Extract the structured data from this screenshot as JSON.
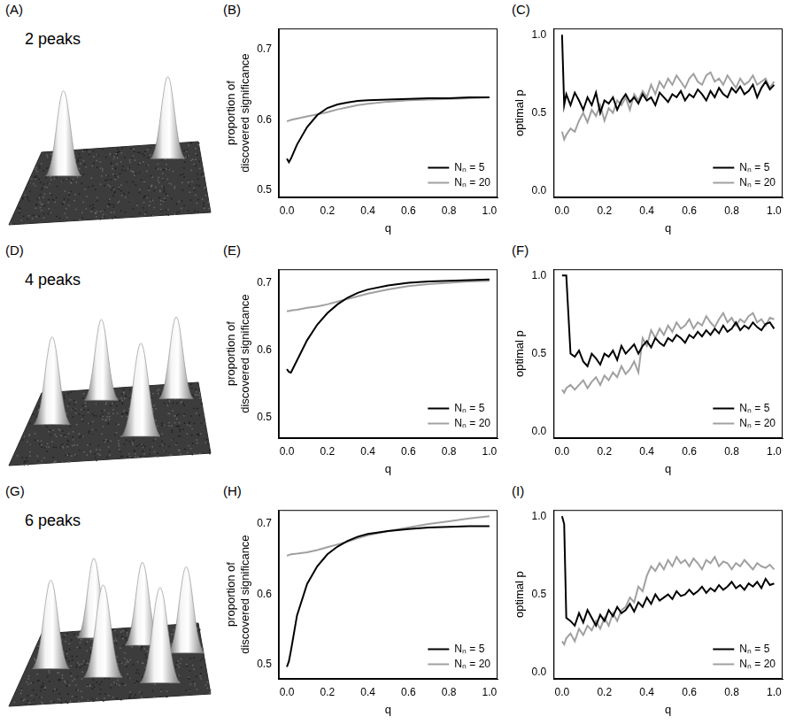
{
  "illustrations": [
    {
      "panel_label": "(A)",
      "label": "2 peaks",
      "peaks": 2
    },
    {
      "panel_label": "(D)",
      "label": "4 peaks",
      "peaks": 4
    },
    {
      "panel_label": "(G)",
      "label": "6 peaks",
      "peaks": 6
    }
  ],
  "chart_data": [
    {
      "type": "line",
      "panel_label": "(B)",
      "x_label": "q",
      "y_label": "proportion of discovered significance",
      "x": [
        0,
        0.01,
        0.02,
        0.05,
        0.1,
        0.15,
        0.2,
        0.25,
        0.3,
        0.35,
        0.4,
        0.5,
        0.6,
        0.7,
        0.8,
        0.9,
        1
      ],
      "series": [
        {
          "name": "Nₙ = 5",
          "color": "#000000",
          "values": [
            0.545,
            0.54,
            0.545,
            0.565,
            0.59,
            0.607,
            0.617,
            0.622,
            0.625,
            0.627,
            0.628,
            0.629,
            0.63,
            0.631,
            0.631,
            0.632,
            0.632
          ]
        },
        {
          "name": "Nₙ = 20",
          "color": "#a0a0a0",
          "values": [
            0.598,
            0.599,
            0.6,
            0.602,
            0.605,
            0.608,
            0.611,
            0.615,
            0.618,
            0.621,
            0.623,
            0.626,
            0.628,
            0.629,
            0.63,
            0.631,
            0.632
          ]
        }
      ],
      "xlim": [
        -0.04,
        1.04
      ],
      "xticks": [
        {
          "value": 0,
          "label": "0.0"
        },
        0.2,
        0.4,
        0.6,
        0.8,
        {
          "value": 1,
          "label": "1.0"
        }
      ],
      "ylim": [
        0.49,
        0.73
      ],
      "yticks": [
        0.5,
        0.6,
        0.7
      ],
      "grid": false,
      "legend": "bottom right"
    },
    {
      "type": "line",
      "panel_label": "(C)",
      "x_label": "q",
      "y_label": "optimal p",
      "x": [
        0,
        0.01,
        0.02,
        0.04,
        0.06,
        0.08,
        0.1,
        0.12,
        0.14,
        0.16,
        0.18,
        0.2,
        0.22,
        0.24,
        0.26,
        0.28,
        0.3,
        0.32,
        0.34,
        0.36,
        0.38,
        0.4,
        0.42,
        0.44,
        0.46,
        0.48,
        0.5,
        0.52,
        0.54,
        0.56,
        0.58,
        0.6,
        0.62,
        0.64,
        0.66,
        0.68,
        0.7,
        0.72,
        0.74,
        0.76,
        0.78,
        0.8,
        0.82,
        0.84,
        0.86,
        0.88,
        0.9,
        0.92,
        0.94,
        0.96,
        0.98,
        1
      ],
      "series": [
        {
          "name": "Nₙ = 5",
          "color": "#000000",
          "values": [
            1.0,
            0.55,
            0.62,
            0.55,
            0.63,
            0.58,
            0.52,
            0.6,
            0.55,
            0.63,
            0.5,
            0.58,
            0.56,
            0.6,
            0.52,
            0.58,
            0.62,
            0.57,
            0.6,
            0.56,
            0.62,
            0.58,
            0.6,
            0.55,
            0.63,
            0.6,
            0.57,
            0.62,
            0.6,
            0.64,
            0.58,
            0.62,
            0.6,
            0.65,
            0.62,
            0.58,
            0.64,
            0.6,
            0.66,
            0.62,
            0.6,
            0.66,
            0.63,
            0.67,
            0.62,
            0.64,
            0.68,
            0.6,
            0.66,
            0.7,
            0.65,
            0.68
          ]
        },
        {
          "name": "Nₙ = 20",
          "color": "#a0a0a0",
          "values": [
            0.38,
            0.33,
            0.36,
            0.4,
            0.38,
            0.45,
            0.5,
            0.44,
            0.52,
            0.48,
            0.55,
            0.45,
            0.53,
            0.5,
            0.58,
            0.55,
            0.6,
            0.52,
            0.62,
            0.58,
            0.64,
            0.6,
            0.68,
            0.62,
            0.7,
            0.66,
            0.72,
            0.68,
            0.74,
            0.7,
            0.66,
            0.72,
            0.75,
            0.7,
            0.68,
            0.74,
            0.76,
            0.7,
            0.72,
            0.68,
            0.74,
            0.7,
            0.66,
            0.72,
            0.68,
            0.7,
            0.74,
            0.68,
            0.7,
            0.72,
            0.66,
            0.7
          ]
        }
      ],
      "xlim": [
        -0.04,
        1.04
      ],
      "xticks": [
        {
          "value": 0,
          "label": "0.0"
        },
        0.2,
        0.4,
        0.6,
        0.8,
        {
          "value": 1,
          "label": "1.0"
        }
      ],
      "ylim": [
        -0.04,
        1.04
      ],
      "yticks": [
        {
          "value": 0,
          "label": "0.0"
        },
        0.5,
        {
          "value": 1,
          "label": "1.0"
        }
      ],
      "grid": false,
      "legend": "bottom right"
    },
    {
      "type": "line",
      "panel_label": "(E)",
      "x_label": "q",
      "y_label": "proportion of discovered significance",
      "x": [
        0,
        0.01,
        0.02,
        0.05,
        0.1,
        0.15,
        0.2,
        0.25,
        0.3,
        0.35,
        0.4,
        0.5,
        0.6,
        0.7,
        0.8,
        0.9,
        1
      ],
      "series": [
        {
          "name": "Nₙ = 5",
          "color": "#000000",
          "values": [
            0.572,
            0.568,
            0.567,
            0.585,
            0.615,
            0.638,
            0.655,
            0.668,
            0.678,
            0.685,
            0.69,
            0.696,
            0.7,
            0.702,
            0.703,
            0.704,
            0.705
          ]
        },
        {
          "name": "Nₙ = 20",
          "color": "#a0a0a0",
          "values": [
            0.658,
            0.658,
            0.659,
            0.66,
            0.663,
            0.665,
            0.668,
            0.672,
            0.676,
            0.68,
            0.684,
            0.69,
            0.695,
            0.698,
            0.7,
            0.702,
            0.703
          ]
        }
      ],
      "xlim": [
        -0.04,
        1.04
      ],
      "xticks": [
        {
          "value": 0,
          "label": "0.0"
        },
        0.2,
        0.4,
        0.6,
        0.8,
        {
          "value": 1,
          "label": "1.0"
        }
      ],
      "ylim": [
        0.47,
        0.72
      ],
      "yticks": [
        0.5,
        0.6,
        0.7
      ],
      "grid": false,
      "legend": "bottom right"
    },
    {
      "type": "line",
      "panel_label": "(F)",
      "x_label": "q",
      "y_label": "optimal p",
      "x": [
        0,
        0.01,
        0.02,
        0.04,
        0.06,
        0.08,
        0.1,
        0.12,
        0.14,
        0.16,
        0.18,
        0.2,
        0.22,
        0.24,
        0.26,
        0.28,
        0.3,
        0.32,
        0.34,
        0.36,
        0.38,
        0.4,
        0.42,
        0.44,
        0.46,
        0.48,
        0.5,
        0.52,
        0.54,
        0.56,
        0.58,
        0.6,
        0.62,
        0.64,
        0.66,
        0.68,
        0.7,
        0.72,
        0.74,
        0.76,
        0.78,
        0.8,
        0.82,
        0.84,
        0.86,
        0.88,
        0.9,
        0.92,
        0.94,
        0.96,
        0.98,
        1
      ],
      "series": [
        {
          "name": "Nₙ = 5",
          "color": "#000000",
          "values": [
            1.0,
            1.0,
            1.0,
            0.5,
            0.48,
            0.52,
            0.45,
            0.42,
            0.5,
            0.47,
            0.43,
            0.5,
            0.48,
            0.52,
            0.46,
            0.55,
            0.5,
            0.53,
            0.56,
            0.5,
            0.55,
            0.58,
            0.54,
            0.6,
            0.57,
            0.55,
            0.6,
            0.58,
            0.62,
            0.6,
            0.57,
            0.62,
            0.6,
            0.64,
            0.61,
            0.65,
            0.62,
            0.66,
            0.63,
            0.68,
            0.64,
            0.66,
            0.7,
            0.65,
            0.68,
            0.66,
            0.7,
            0.67,
            0.65,
            0.69,
            0.7,
            0.66
          ]
        },
        {
          "name": "Nₙ = 20",
          "color": "#a0a0a0",
          "values": [
            0.27,
            0.25,
            0.28,
            0.3,
            0.27,
            0.3,
            0.33,
            0.28,
            0.32,
            0.35,
            0.3,
            0.36,
            0.33,
            0.38,
            0.35,
            0.42,
            0.37,
            0.4,
            0.45,
            0.38,
            0.6,
            0.55,
            0.65,
            0.6,
            0.66,
            0.62,
            0.68,
            0.64,
            0.7,
            0.66,
            0.68,
            0.72,
            0.66,
            0.7,
            0.68,
            0.74,
            0.7,
            0.67,
            0.72,
            0.76,
            0.7,
            0.73,
            0.68,
            0.72,
            0.7,
            0.74,
            0.76,
            0.7,
            0.72,
            0.68,
            0.73,
            0.72
          ]
        }
      ],
      "xlim": [
        -0.04,
        1.04
      ],
      "xticks": [
        {
          "value": 0,
          "label": "0.0"
        },
        0.2,
        0.4,
        0.6,
        0.8,
        {
          "value": 1,
          "label": "1.0"
        }
      ],
      "ylim": [
        -0.04,
        1.04
      ],
      "yticks": [
        {
          "value": 0,
          "label": "0.0"
        },
        0.5,
        {
          "value": 1,
          "label": "1.0"
        }
      ],
      "grid": false,
      "legend": "bottom right"
    },
    {
      "type": "line",
      "panel_label": "(H)",
      "x_label": "q",
      "y_label": "proportion of discovered significance",
      "x": [
        0,
        0.01,
        0.02,
        0.05,
        0.1,
        0.15,
        0.2,
        0.25,
        0.3,
        0.35,
        0.4,
        0.5,
        0.6,
        0.7,
        0.8,
        0.9,
        1
      ],
      "series": [
        {
          "name": "Nₙ = 5",
          "color": "#000000",
          "values": [
            0.497,
            0.505,
            0.52,
            0.57,
            0.615,
            0.64,
            0.657,
            0.668,
            0.676,
            0.682,
            0.686,
            0.69,
            0.693,
            0.695,
            0.696,
            0.697,
            0.697
          ]
        },
        {
          "name": "Nₙ = 20",
          "color": "#a0a0a0",
          "values": [
            0.655,
            0.656,
            0.657,
            0.658,
            0.66,
            0.663,
            0.667,
            0.671,
            0.675,
            0.68,
            0.684,
            0.69,
            0.695,
            0.7,
            0.704,
            0.708,
            0.711
          ]
        }
      ],
      "xlim": [
        -0.04,
        1.04
      ],
      "xticks": [
        {
          "value": 0,
          "label": "0.0"
        },
        0.2,
        0.4,
        0.6,
        0.8,
        {
          "value": 1,
          "label": "1.0"
        }
      ],
      "ylim": [
        0.48,
        0.72
      ],
      "yticks": [
        0.5,
        0.6,
        0.7
      ],
      "grid": false,
      "legend": "bottom right"
    },
    {
      "type": "line",
      "panel_label": "(I)",
      "x_label": "q",
      "y_label": "optimal p",
      "x": [
        0,
        0.01,
        0.02,
        0.04,
        0.06,
        0.08,
        0.1,
        0.12,
        0.14,
        0.16,
        0.18,
        0.2,
        0.22,
        0.24,
        0.26,
        0.28,
        0.3,
        0.32,
        0.34,
        0.36,
        0.38,
        0.4,
        0.42,
        0.44,
        0.46,
        0.48,
        0.5,
        0.52,
        0.54,
        0.56,
        0.58,
        0.6,
        0.62,
        0.64,
        0.66,
        0.68,
        0.7,
        0.72,
        0.74,
        0.76,
        0.78,
        0.8,
        0.82,
        0.84,
        0.86,
        0.88,
        0.9,
        0.92,
        0.94,
        0.96,
        0.98,
        1
      ],
      "series": [
        {
          "name": "Nₙ = 5",
          "color": "#000000",
          "values": [
            1.0,
            0.95,
            0.35,
            0.33,
            0.3,
            0.38,
            0.32,
            0.4,
            0.35,
            0.3,
            0.37,
            0.33,
            0.4,
            0.36,
            0.42,
            0.38,
            0.4,
            0.44,
            0.39,
            0.45,
            0.42,
            0.48,
            0.44,
            0.5,
            0.46,
            0.48,
            0.5,
            0.47,
            0.52,
            0.49,
            0.5,
            0.53,
            0.5,
            0.52,
            0.55,
            0.51,
            0.54,
            0.52,
            0.56,
            0.53,
            0.55,
            0.58,
            0.54,
            0.56,
            0.53,
            0.57,
            0.55,
            0.58,
            0.54,
            0.6,
            0.56,
            0.57
          ]
        },
        {
          "name": "Nₙ = 20",
          "color": "#a0a0a0",
          "values": [
            0.2,
            0.18,
            0.22,
            0.25,
            0.2,
            0.28,
            0.24,
            0.3,
            0.27,
            0.33,
            0.28,
            0.35,
            0.3,
            0.38,
            0.33,
            0.4,
            0.42,
            0.48,
            0.45,
            0.55,
            0.52,
            0.62,
            0.68,
            0.65,
            0.7,
            0.66,
            0.72,
            0.68,
            0.74,
            0.7,
            0.72,
            0.68,
            0.73,
            0.7,
            0.66,
            0.72,
            0.7,
            0.74,
            0.68,
            0.71,
            0.7,
            0.66,
            0.7,
            0.68,
            0.72,
            0.69,
            0.66,
            0.7,
            0.68,
            0.67,
            0.69,
            0.66
          ]
        }
      ],
      "xlim": [
        -0.04,
        1.04
      ],
      "xticks": [
        {
          "value": 0,
          "label": "0.0"
        },
        0.2,
        0.4,
        0.6,
        0.8,
        {
          "value": 1,
          "label": "1.0"
        }
      ],
      "ylim": [
        -0.04,
        1.04
      ],
      "yticks": [
        {
          "value": 0,
          "label": "0.0"
        },
        0.5,
        {
          "value": 1,
          "label": "1.0"
        }
      ],
      "grid": false,
      "legend": "bottom right"
    }
  ]
}
